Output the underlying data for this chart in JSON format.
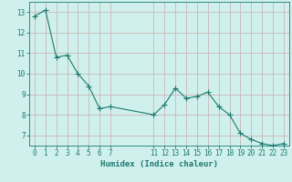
{
  "x": [
    0,
    1,
    2,
    3,
    4,
    5,
    6,
    7,
    11,
    12,
    13,
    14,
    15,
    16,
    17,
    18,
    19,
    20,
    21,
    22,
    23
  ],
  "y": [
    12.8,
    13.1,
    10.8,
    10.9,
    10.0,
    9.4,
    8.3,
    8.4,
    8.0,
    8.5,
    9.3,
    8.8,
    8.9,
    9.1,
    8.4,
    8.0,
    7.1,
    6.8,
    6.6,
    6.5,
    6.6
  ],
  "line_color": "#1d7a70",
  "marker": "+",
  "marker_size": 4,
  "bg_color": "#cff0ec",
  "grid_color_h": "#c8b8b8",
  "grid_color_v": "#c8b8b8",
  "xlabel": "Humidex (Indice chaleur)",
  "ylim": [
    6.5,
    13.5
  ],
  "yticks": [
    7,
    8,
    9,
    10,
    11,
    12,
    13
  ],
  "xticks": [
    0,
    1,
    2,
    3,
    4,
    5,
    6,
    7,
    11,
    12,
    13,
    14,
    15,
    16,
    17,
    18,
    19,
    20,
    21,
    22,
    23
  ],
  "xlim": [
    -0.5,
    23.5
  ],
  "tick_color": "#1d7a70",
  "label_color": "#1d7a70",
  "font_size_tick": 5.5,
  "font_size_xlabel": 6.5,
  "linewidth": 0.8,
  "marker_linewidth": 0.8
}
